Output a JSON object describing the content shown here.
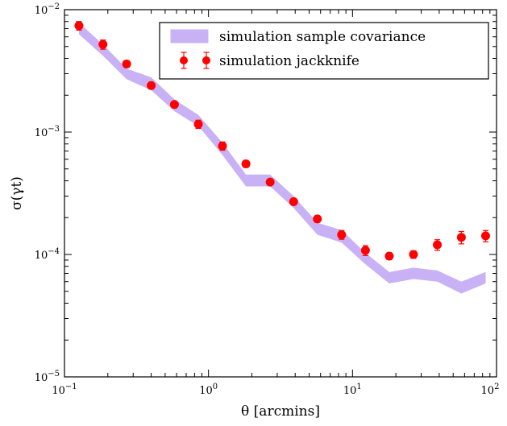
{
  "chart_data": {
    "type": "scatter",
    "xscale": "log",
    "yscale": "log",
    "xlim": [
      0.1,
      100
    ],
    "ylim": [
      1e-05,
      0.01
    ],
    "xlabel": "θ [arcmins]",
    "ylabel": "σ(γt)",
    "x_ticks": [
      {
        "value": 0.1,
        "base": "10",
        "exp": "−1"
      },
      {
        "value": 1,
        "base": "10",
        "exp": "0"
      },
      {
        "value": 10,
        "base": "10",
        "exp": "1"
      },
      {
        "value": 100,
        "base": "10",
        "exp": "2"
      }
    ],
    "y_ticks": [
      {
        "value": 1e-05,
        "base": "10",
        "exp": "−5"
      },
      {
        "value": 0.0001,
        "base": "10",
        "exp": "−4"
      },
      {
        "value": 0.001,
        "base": "10",
        "exp": "−3"
      },
      {
        "value": 0.01,
        "base": "10",
        "exp": "−2"
      }
    ],
    "legend_position": "top-right",
    "grid": false,
    "series": [
      {
        "name": "simulation sample covariance",
        "kind": "band",
        "color": "#c8b2f5",
        "x": [
          0.126,
          0.185,
          0.27,
          0.4,
          0.58,
          0.85,
          1.25,
          1.82,
          2.68,
          3.9,
          5.7,
          8.4,
          12.3,
          18,
          26.5,
          38.8,
          57,
          84
        ],
        "lower": [
          0.0063,
          0.0042,
          0.0027,
          0.0022,
          0.00148,
          0.00112,
          0.00065,
          0.00036,
          0.00036,
          0.00024,
          0.000145,
          0.000125,
          8.3e-05,
          5.8e-05,
          6.3e-05,
          6e-05,
          4.8e-05,
          5.8e-05
        ],
        "upper": [
          0.0078,
          0.0052,
          0.0033,
          0.0028,
          0.00185,
          0.00138,
          0.00082,
          0.00045,
          0.00045,
          0.0003,
          0.000182,
          0.000158,
          0.000103,
          7.2e-05,
          7.8e-05,
          7.4e-05,
          6e-05,
          7.2e-05
        ]
      },
      {
        "name": "simulation jackknife",
        "kind": "errorbar",
        "color": "#ff0000",
        "x": [
          0.126,
          0.185,
          0.27,
          0.4,
          0.58,
          0.85,
          1.25,
          1.82,
          2.68,
          3.9,
          5.7,
          8.4,
          12.3,
          18,
          26.5,
          38.8,
          57,
          84
        ],
        "y": [
          0.0074,
          0.0052,
          0.0036,
          0.0024,
          0.00168,
          0.00116,
          0.00077,
          0.00055,
          0.00039,
          0.00027,
          0.000195,
          0.000145,
          0.000108,
          9.7e-05,
          0.0001,
          0.00012,
          0.000138,
          0.000142
        ],
        "err": [
          0.0006,
          0.00045,
          0.00022,
          0.00015,
          0.0001,
          9e-05,
          6e-05,
          3.5e-05,
          2e-05,
          1.5e-05,
          1.2e-05,
          1.2e-05,
          1e-05,
          6e-06,
          7e-06,
          1.2e-05,
          1.6e-05,
          1.5e-05
        ]
      }
    ]
  }
}
